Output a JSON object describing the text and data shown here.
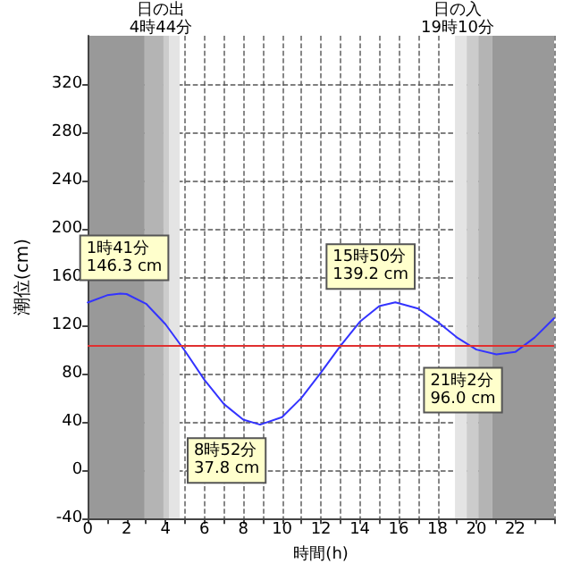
{
  "chart_data": {
    "type": "line",
    "xlabel": "時間(h)",
    "ylabel": "潮位(cm)",
    "x": [
      0,
      1,
      1.68,
      2,
      3,
      4,
      5,
      6,
      7,
      8,
      8.87,
      10,
      11,
      12,
      13,
      14,
      15,
      15.83,
      17,
      18,
      19,
      20,
      21.03,
      22,
      23,
      24
    ],
    "series": [
      {
        "color": "#3333ff",
        "values": [
          139,
          145,
          146.3,
          146,
          138,
          121,
          99,
          75,
          55,
          42,
          37.8,
          44,
          60,
          81,
          103,
          123,
          136,
          139.2,
          134,
          123,
          110,
          100,
          96.0,
          98,
          110,
          126
        ]
      }
    ],
    "xlim": [
      0,
      24
    ],
    "xticks": [
      0,
      {
        "value": 1,
        "label": null
      },
      2,
      {
        "value": 3,
        "label": null
      },
      4,
      {
        "value": 5,
        "label": null
      },
      6,
      {
        "value": 7,
        "label": null
      },
      8,
      {
        "value": 9,
        "label": null
      },
      10,
      {
        "value": 11,
        "label": null
      },
      12,
      {
        "value": 13,
        "label": null
      },
      14,
      {
        "value": 15,
        "label": null
      },
      16,
      {
        "value": 17,
        "label": null
      },
      18,
      {
        "value": 19,
        "label": null
      },
      20,
      {
        "value": 21,
        "label": null
      },
      22,
      {
        "value": 23,
        "label": null
      },
      {
        "value": 24,
        "label": null
      }
    ],
    "ylim": [
      -40,
      360
    ],
    "yticks": [
      -40,
      0,
      40,
      80,
      120,
      160,
      200,
      240,
      280,
      320
    ],
    "grid": true,
    "marker": "none",
    "line_style": "solid",
    "ref_lines": [
      {
        "axis": "y",
        "value": 103,
        "label": null,
        "color": "#e03030"
      }
    ],
    "bands": [
      {
        "axis": "x",
        "from": 0,
        "to": 2.93,
        "color": "#999999"
      },
      {
        "axis": "x",
        "from": 2.93,
        "to": 3.9,
        "color": "#b4b4b4"
      },
      {
        "axis": "x",
        "from": 3.9,
        "to": 4.2,
        "color": "#cccccc"
      },
      {
        "axis": "x",
        "from": 4.2,
        "to": 4.73,
        "color": "#e4e4e4"
      },
      {
        "axis": "x",
        "from": 18.9,
        "to": 19.5,
        "color": "#e4e4e4"
      },
      {
        "axis": "x",
        "from": 19.5,
        "to": 20.1,
        "color": "#cccccc"
      },
      {
        "axis": "x",
        "from": 20.1,
        "to": 20.8,
        "color": "#b4b4b4"
      },
      {
        "axis": "x",
        "from": 20.8,
        "to": 24,
        "color": "#999999"
      }
    ],
    "annotations": [
      "日の出\n4時44分",
      "日の入\n19時10分",
      {
        "text": "1時41分\n146.3 cm",
        "x": 1.68,
        "y": 146.3
      },
      {
        "text": "8時52分\n37.8 cm",
        "x": 8.87,
        "y": 37.8
      },
      {
        "text": "15時50分\n139.2 cm",
        "x": 15.83,
        "y": 139.2
      },
      {
        "text": "21時2分\n96.0 cm",
        "x": 21.03,
        "y": 96.0
      }
    ]
  }
}
